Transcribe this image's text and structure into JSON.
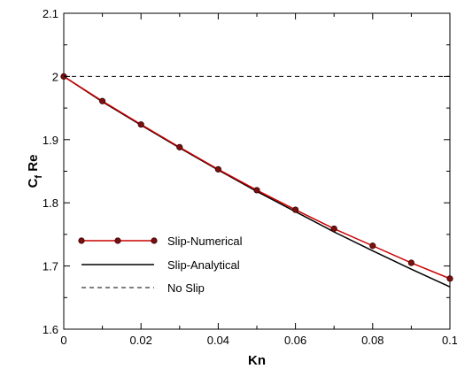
{
  "chart_data": {
    "type": "line",
    "xlabel": "Kn",
    "ylabel": {
      "main": "C",
      "subscript": "f",
      "rest": " Re"
    },
    "xlim": [
      0,
      0.1
    ],
    "ylim": [
      1.6,
      2.1
    ],
    "x_ticks": [
      "0",
      "0.02",
      "0.04",
      "0.06",
      "0.08",
      "0.1"
    ],
    "y_ticks": [
      "1.6",
      "1.7",
      "1.8",
      "1.9",
      "2",
      "2.1"
    ],
    "grid": false,
    "legend_position": "bottom-left",
    "series": [
      {
        "name": "Slip-Numerical",
        "color": "#cc0000",
        "marker": "circle",
        "line": "solid",
        "x": [
          0,
          0.01,
          0.02,
          0.03,
          0.04,
          0.05,
          0.06,
          0.07,
          0.08,
          0.09,
          0.1
        ],
        "y": [
          2.0,
          1.961,
          1.924,
          1.888,
          1.853,
          1.82,
          1.789,
          1.759,
          1.732,
          1.705,
          1.68
        ]
      },
      {
        "name": "Slip-Analytical",
        "color": "#000000",
        "marker": "none",
        "line": "solid",
        "x": [
          0,
          0.01,
          0.02,
          0.03,
          0.04,
          0.05,
          0.06,
          0.07,
          0.08,
          0.09,
          0.1
        ],
        "y": [
          2.0,
          1.96,
          1.923,
          1.887,
          1.852,
          1.818,
          1.786,
          1.754,
          1.724,
          1.695,
          1.667
        ]
      },
      {
        "name": "No Slip",
        "color": "#000000",
        "marker": "none",
        "line": "dashed",
        "x": [
          0,
          0.1
        ],
        "y": [
          2.0,
          2.0
        ]
      }
    ]
  }
}
